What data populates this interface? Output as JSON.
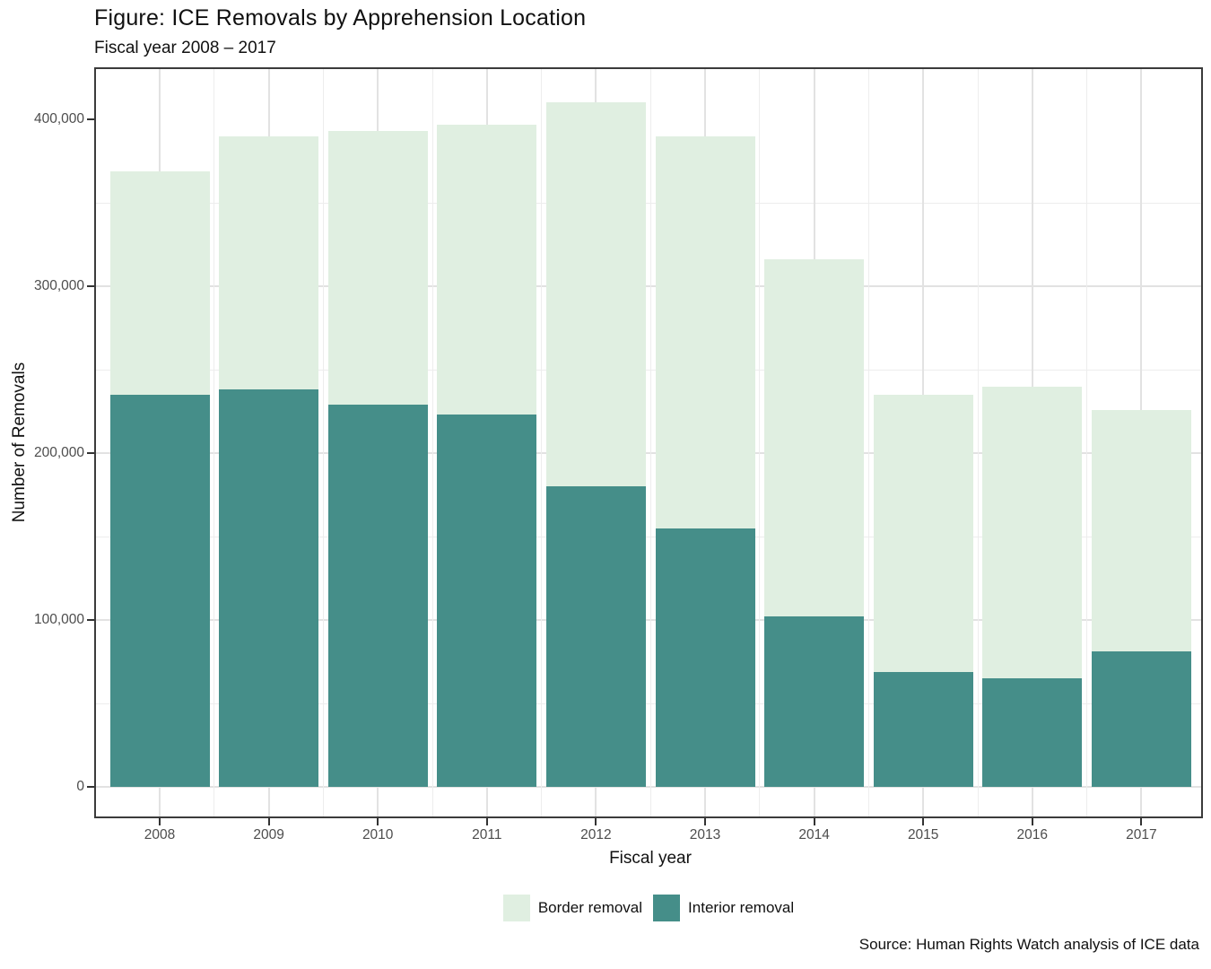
{
  "title": "Figure: ICE Removals by Apprehension Location",
  "subtitle": "Fiscal year 2008 – 2017",
  "source_note": "Source: Human Rights Watch analysis of ICE data",
  "y_axis": {
    "label": "Number of Removals",
    "ticks": [
      {
        "value": 0,
        "label": "0"
      },
      {
        "value": 100000,
        "label": "100,000"
      },
      {
        "value": 200000,
        "label": "200,000"
      },
      {
        "value": 300000,
        "label": "300,000"
      },
      {
        "value": 400000,
        "label": "400,000"
      }
    ]
  },
  "x_axis": {
    "label": "Fiscal year"
  },
  "legend": [
    {
      "label": "Border removal",
      "color": "#e0efe1"
    },
    {
      "label": "Interior removal",
      "color": "#458e89"
    }
  ],
  "colors": {
    "border_removal": "#e0efe1",
    "interior_removal": "#458e89",
    "grid_major": "#e2e2e2",
    "grid_minor": "#ededed",
    "panel_border": "#3b3b3b"
  },
  "chart_data": {
    "type": "bar",
    "stacked": true,
    "title": "Figure: ICE Removals by Apprehension Location",
    "subtitle": "Fiscal year 2008 – 2017",
    "xlabel": "Fiscal year",
    "ylabel": "Number of Removals",
    "ylim": [
      0,
      430000
    ],
    "grid": true,
    "legend_position": "bottom",
    "categories": [
      "2008",
      "2009",
      "2010",
      "2011",
      "2012",
      "2013",
      "2014",
      "2015",
      "2016",
      "2017"
    ],
    "series": [
      {
        "name": "Interior removal",
        "color": "#458e89",
        "values": [
          235000,
          238000,
          229000,
          223000,
          180000,
          155000,
          102000,
          69000,
          65000,
          81000
        ]
      },
      {
        "name": "Border removal",
        "color": "#e0efe1",
        "values": [
          134000,
          152000,
          164000,
          174000,
          230000,
          235000,
          214000,
          166000,
          175000,
          145000
        ]
      }
    ],
    "totals": [
      369000,
      390000,
      393000,
      397000,
      410000,
      390000,
      316000,
      235000,
      240000,
      226000
    ],
    "y_major_step": 100000,
    "y_minor_step": 50000
  }
}
